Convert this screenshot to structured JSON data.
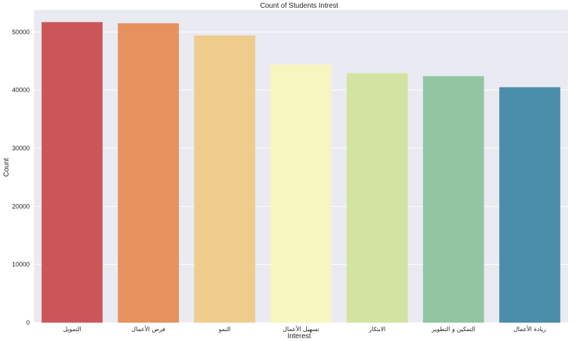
{
  "chart_data": {
    "type": "bar",
    "title": "Count of Students Intrest",
    "xlabel": "Interest",
    "ylabel": "Count",
    "categories": [
      "التمويل",
      "فرص الأعمال",
      "النمو",
      "تسهيل الأعمال",
      "الابتكار",
      "التمكين و التطوير",
      "ريادة الأعمال"
    ],
    "values": [
      51700,
      51500,
      49400,
      44400,
      42900,
      42400,
      40500
    ],
    "colors": [
      "#cb5659",
      "#e6925e",
      "#eecc8c",
      "#f8f6c0",
      "#d2e3a2",
      "#92c6a3",
      "#4b8ea9"
    ],
    "ylim": [
      0,
      53800
    ],
    "yticks": [
      0,
      10000,
      20000,
      30000,
      40000,
      50000
    ],
    "grid": true,
    "background": "#eaeaf2"
  }
}
